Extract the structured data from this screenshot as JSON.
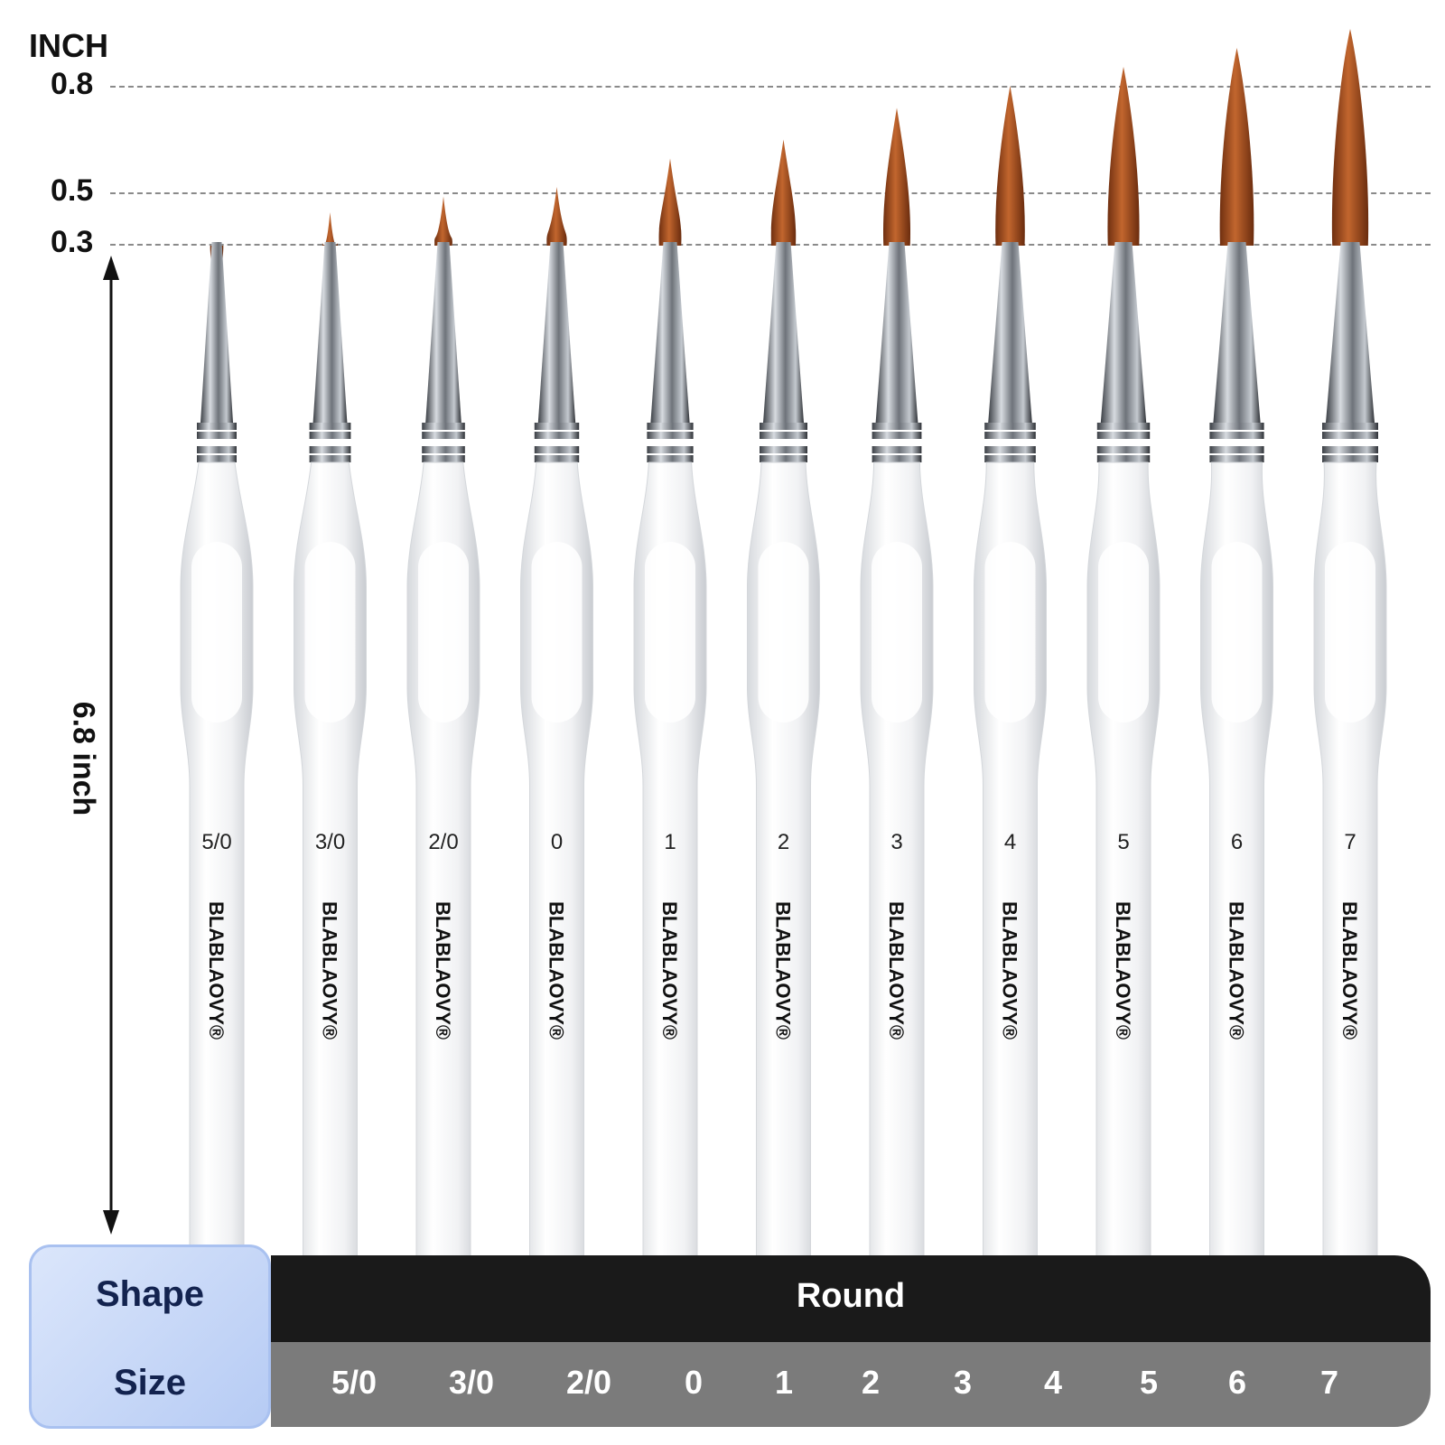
{
  "scale": {
    "unit": "INCH",
    "marks": [
      "0.8",
      "0.5",
      "0.3"
    ],
    "length": "6.8 inch"
  },
  "brushes": [
    {
      "label": "5/0",
      "tip": 0.2
    },
    {
      "label": "3/0",
      "tip": 0.3
    },
    {
      "label": "2/0",
      "tip": 0.35
    },
    {
      "label": "0",
      "tip": 0.38
    },
    {
      "label": "1",
      "tip": 0.47
    },
    {
      "label": "2",
      "tip": 0.53
    },
    {
      "label": "3",
      "tip": 0.63
    },
    {
      "label": "4",
      "tip": 0.7
    },
    {
      "label": "5",
      "tip": 0.76
    },
    {
      "label": "6",
      "tip": 0.82
    },
    {
      "label": "7",
      "tip": 0.88
    }
  ],
  "brand": "BLABLAOVY®",
  "table": {
    "shape_label": "Shape",
    "size_label": "Size",
    "shape_value": "Round",
    "sizes": [
      "5/0",
      "3/0",
      "2/0",
      "0",
      "1",
      "2",
      "3",
      "4",
      "5",
      "6",
      "7"
    ]
  },
  "colors": {
    "bristle": "#9c4a1d",
    "ferrule": "#7a7f86",
    "handle": "#f2f4f6",
    "header": "#c9d8f7",
    "row_dark": "#1a1a1a",
    "row_grey": "#7b7b7b"
  }
}
